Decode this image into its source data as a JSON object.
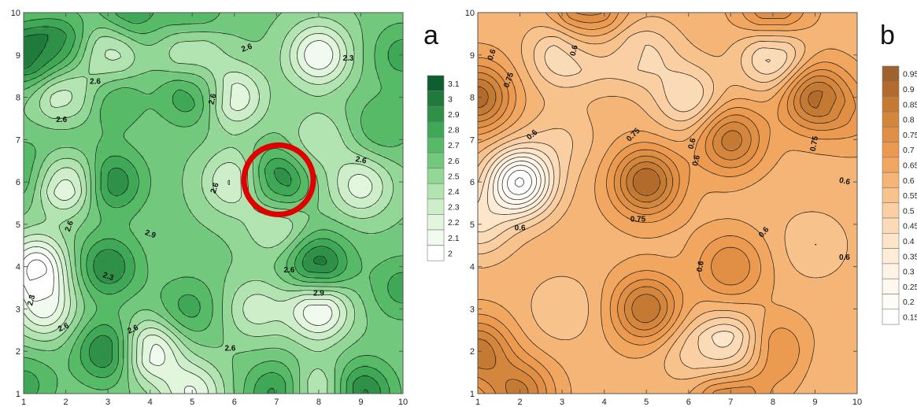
{
  "chart_data": [
    {
      "type": "heatmap",
      "panel_label": "a",
      "x_ticks": [
        "1",
        "2",
        "3",
        "4",
        "5",
        "6",
        "7",
        "8",
        "9",
        "10"
      ],
      "y_ticks": [
        "1",
        "2",
        "3",
        "4",
        "5",
        "6",
        "7",
        "8",
        "9",
        "10"
      ],
      "xlim": [
        1,
        10
      ],
      "ylim": [
        1,
        10
      ],
      "grid": false,
      "colorbar": {
        "levels": [
          "3.1",
          "3",
          "2.9",
          "2.8",
          "2.7",
          "2.6",
          "2.5",
          "2.4",
          "2.3",
          "2.2",
          "2.1",
          "2"
        ],
        "colors": [
          "#0f5e2e",
          "#1f7a3c",
          "#2f9148",
          "#3fa857",
          "#56ba66",
          "#72c87c",
          "#93d796",
          "#b2e4b2",
          "#cdeec9",
          "#e2f5dd",
          "#f1faee",
          "#ffffff"
        ],
        "placement": "right"
      },
      "contour_labels": [
        "2.6",
        "2.3",
        "2.6",
        "2.6",
        "2.6",
        "2.6",
        "2.6",
        "2.6",
        "2.9",
        "2.3",
        "2.6",
        "2.3",
        "2.9",
        "2.6",
        "2.6",
        "2.6"
      ],
      "highlight": {
        "shape": "circle",
        "color": "#e00000",
        "x": 7.05,
        "y": 6.05
      },
      "field_peaks": [
        {
          "x": 1.0,
          "y": 9.0,
          "v": 3.05
        },
        {
          "x": 1.9,
          "y": 9.2,
          "v": 2.95
        },
        {
          "x": 3.5,
          "y": 10.0,
          "v": 2.9
        },
        {
          "x": 5.0,
          "y": 8.1,
          "v": 2.95
        },
        {
          "x": 3.1,
          "y": 8.0,
          "v": 2.85
        },
        {
          "x": 10.0,
          "y": 9.0,
          "v": 2.85
        },
        {
          "x": 9.5,
          "y": 7.3,
          "v": 2.8
        },
        {
          "x": 1.0,
          "y": 6.2,
          "v": 2.85
        },
        {
          "x": 3.1,
          "y": 6.0,
          "v": 3.0
        },
        {
          "x": 7.0,
          "y": 6.0,
          "v": 3.05
        },
        {
          "x": 8.0,
          "y": 4.0,
          "v": 3.1
        },
        {
          "x": 3.0,
          "y": 4.0,
          "v": 3.0
        },
        {
          "x": 4.9,
          "y": 3.0,
          "v": 2.85
        },
        {
          "x": 3.0,
          "y": 2.0,
          "v": 3.05
        },
        {
          "x": 1.0,
          "y": 1.2,
          "v": 2.85
        },
        {
          "x": 7.0,
          "y": 1.0,
          "v": 2.95
        },
        {
          "x": 9.0,
          "y": 1.0,
          "v": 3.05
        },
        {
          "x": 10.0,
          "y": 3.5,
          "v": 2.85
        },
        {
          "x": 5.0,
          "y": 10.0,
          "v": 2.85
        },
        {
          "x": 2.0,
          "y": 7.0,
          "v": 2.75
        }
      ],
      "field_troughs": [
        {
          "x": 1.3,
          "y": 4.0,
          "v": 2.0
        },
        {
          "x": 2.0,
          "y": 6.0,
          "v": 2.1
        },
        {
          "x": 2.0,
          "y": 8.0,
          "v": 2.25
        },
        {
          "x": 3.0,
          "y": 9.0,
          "v": 2.25
        },
        {
          "x": 5.0,
          "y": 9.0,
          "v": 2.3
        },
        {
          "x": 6.0,
          "y": 8.0,
          "v": 2.2
        },
        {
          "x": 6.0,
          "y": 6.0,
          "v": 2.25
        },
        {
          "x": 8.0,
          "y": 9.0,
          "v": 2.1
        },
        {
          "x": 9.0,
          "y": 5.9,
          "v": 2.25
        },
        {
          "x": 8.0,
          "y": 3.0,
          "v": 2.05
        },
        {
          "x": 4.0,
          "y": 2.0,
          "v": 2.1
        },
        {
          "x": 5.0,
          "y": 1.0,
          "v": 2.2
        },
        {
          "x": 7.0,
          "y": 5.0,
          "v": 2.35
        },
        {
          "x": 6.5,
          "y": 3.0,
          "v": 2.35
        },
        {
          "x": 8.0,
          "y": 7.0,
          "v": 2.4
        },
        {
          "x": 8.0,
          "y": 1.0,
          "v": 2.3
        },
        {
          "x": 1.5,
          "y": 3.0,
          "v": 2.2
        }
      ]
    },
    {
      "type": "heatmap",
      "panel_label": "b",
      "x_ticks": [
        "1",
        "2",
        "3",
        "4",
        "5",
        "6",
        "7",
        "8",
        "9",
        "10"
      ],
      "y_ticks": [
        "1",
        "2",
        "3",
        "4",
        "5",
        "6",
        "7",
        "8",
        "9",
        "10"
      ],
      "xlim": [
        1,
        10
      ],
      "ylim": [
        1,
        10
      ],
      "grid": false,
      "colorbar": {
        "levels": [
          "0.95",
          "0.9",
          "0.85",
          "0.8",
          "0.75",
          "0.7",
          "0.65",
          "0.6",
          "0.55",
          "0.5",
          "0.45",
          "0.4",
          "0.35",
          "0.3",
          "0.25",
          "0.2",
          "0.15"
        ],
        "colors": [
          "#a0622c",
          "#b36b2b",
          "#c47a33",
          "#d4863c",
          "#e08f45",
          "#ec9a50",
          "#f1a760",
          "#f5b576",
          "#f7c28c",
          "#f9cfa3",
          "#fbdbb7",
          "#fce5c8",
          "#fdedd8",
          "#fef3e5",
          "#fff8f0",
          "#fffbf6",
          "#ffffff"
        ],
        "placement": "right"
      },
      "contour_labels": [
        "0.6",
        "0.6",
        "0.75",
        "0.6",
        "0.75",
        "0.6",
        "0.75",
        "0.6",
        "0.6",
        "0.75",
        "0.6",
        "0.6",
        "0.6",
        "0.6"
      ],
      "field_peaks": [
        {
          "x": 1.0,
          "y": 8.0,
          "v": 0.93
        },
        {
          "x": 1.0,
          "y": 2.0,
          "v": 0.88
        },
        {
          "x": 3.6,
          "y": 10.0,
          "v": 0.87
        },
        {
          "x": 5.0,
          "y": 6.0,
          "v": 0.95
        },
        {
          "x": 9.0,
          "y": 8.0,
          "v": 0.92
        },
        {
          "x": 7.0,
          "y": 7.0,
          "v": 0.88
        },
        {
          "x": 5.0,
          "y": 3.0,
          "v": 0.9
        },
        {
          "x": 7.0,
          "y": 4.0,
          "v": 0.8
        },
        {
          "x": 7.0,
          "y": 1.0,
          "v": 0.86
        },
        {
          "x": 2.0,
          "y": 1.0,
          "v": 0.86
        },
        {
          "x": 8.0,
          "y": 10.0,
          "v": 0.84
        },
        {
          "x": 10.0,
          "y": 7.5,
          "v": 0.7
        },
        {
          "x": 8.0,
          "y": 2.0,
          "v": 0.78
        }
      ],
      "field_troughs": [
        {
          "x": 2.0,
          "y": 6.0,
          "v": 0.15
        },
        {
          "x": 1.0,
          "y": 5.0,
          "v": 0.45
        },
        {
          "x": 3.0,
          "y": 9.0,
          "v": 0.45
        },
        {
          "x": 4.0,
          "y": 9.0,
          "v": 0.55
        },
        {
          "x": 5.0,
          "y": 9.0,
          "v": 0.5
        },
        {
          "x": 6.0,
          "y": 8.0,
          "v": 0.45
        },
        {
          "x": 8.0,
          "y": 9.0,
          "v": 0.4
        },
        {
          "x": 7.0,
          "y": 2.0,
          "v": 0.35
        },
        {
          "x": 6.0,
          "y": 2.0,
          "v": 0.55
        },
        {
          "x": 3.0,
          "y": 3.0,
          "v": 0.55
        },
        {
          "x": 9.0,
          "y": 4.5,
          "v": 0.55
        },
        {
          "x": 9.5,
          "y": 1.5,
          "v": 0.6
        },
        {
          "x": 3.0,
          "y": 7.0,
          "v": 0.55
        },
        {
          "x": 8.0,
          "y": 5.5,
          "v": 0.62
        }
      ]
    }
  ]
}
